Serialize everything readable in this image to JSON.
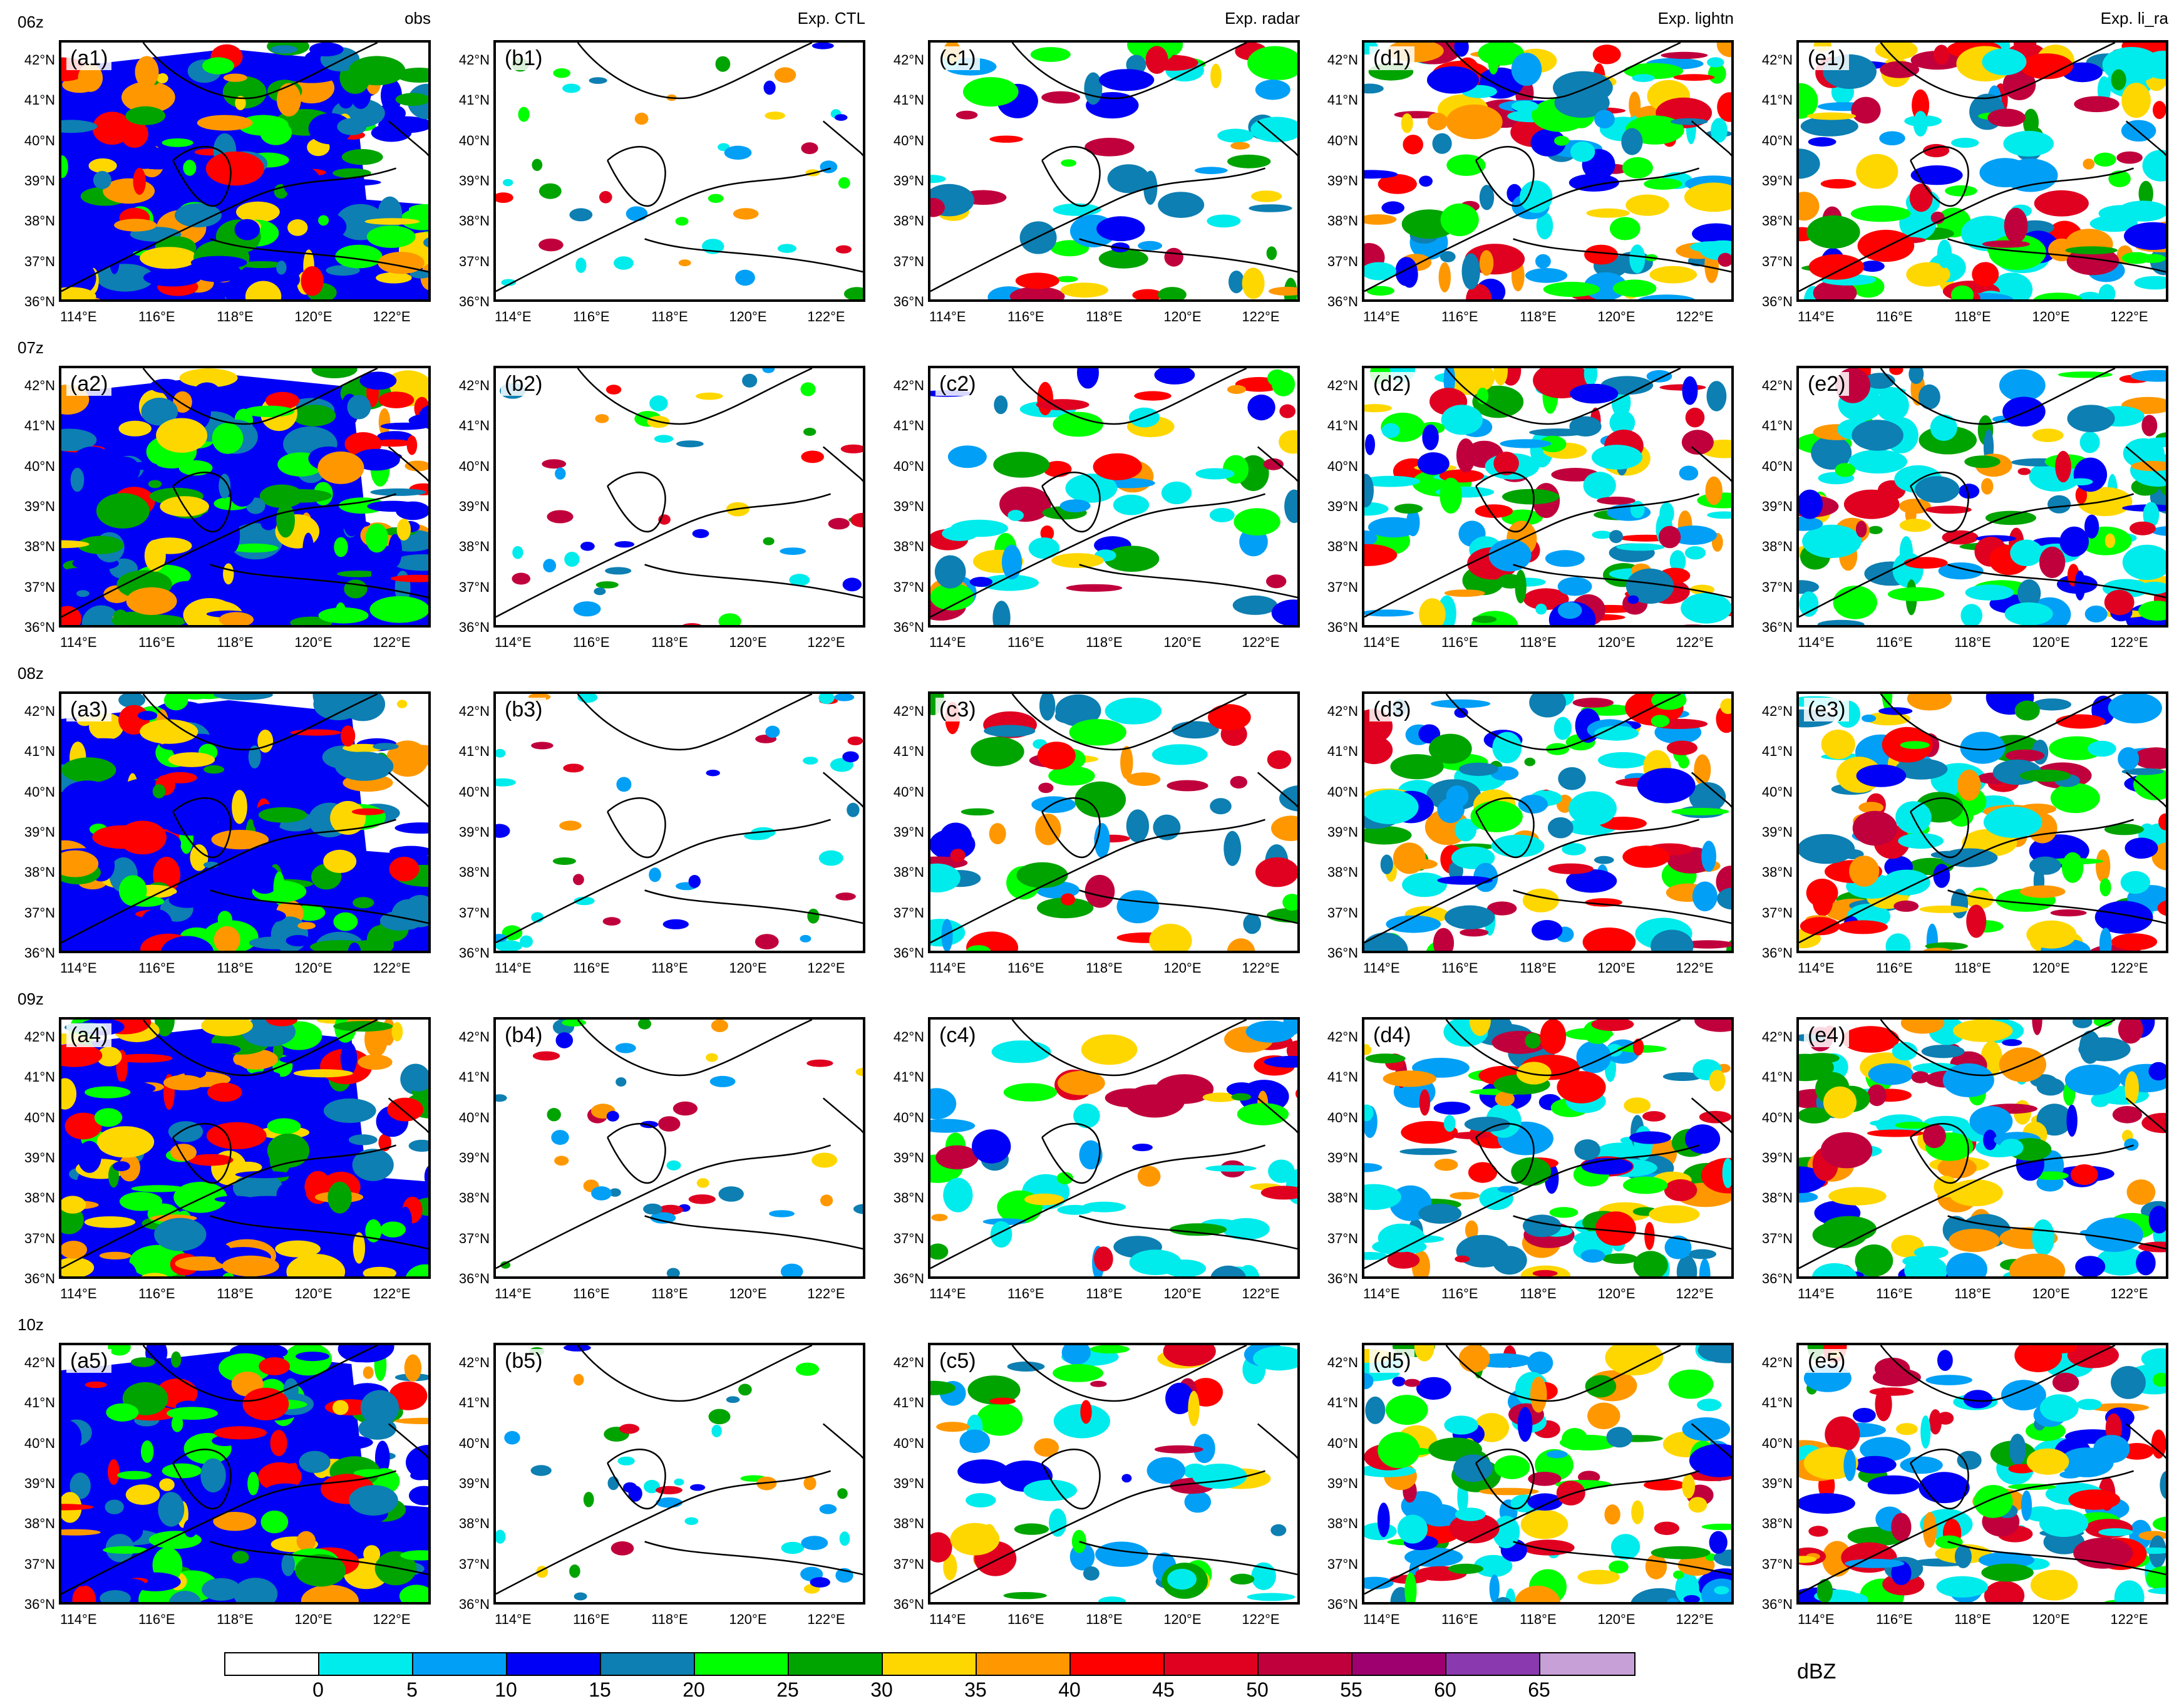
{
  "columns": [
    {
      "key": "a",
      "title": "obs"
    },
    {
      "key": "b",
      "title": "Exp. CTL"
    },
    {
      "key": "c",
      "title": "Exp. radar"
    },
    {
      "key": "d",
      "title": "Exp. lightn"
    },
    {
      "key": "e",
      "title": "Exp. li_ra"
    }
  ],
  "rows": [
    "06z",
    "07z",
    "08z",
    "09z",
    "10z"
  ],
  "panels": [
    [
      "(a1)",
      "(b1)",
      "(c1)",
      "(d1)",
      "(e1)"
    ],
    [
      "(a2)",
      "(b2)",
      "(c2)",
      "(d2)",
      "(e2)"
    ],
    [
      "(a3)",
      "(b3)",
      "(c3)",
      "(d3)",
      "(e3)"
    ],
    [
      "(a4)",
      "(b4)",
      "(c4)",
      "(d4)",
      "(e4)"
    ],
    [
      "(a5)",
      "(b5)",
      "(c5)",
      "(d5)",
      "(e5)"
    ]
  ],
  "lat_ticks": [
    "42°N",
    "41°N",
    "40°N",
    "39°N",
    "38°N",
    "37°N",
    "36°N"
  ],
  "lon_ticks": [
    "114°E",
    "116°E",
    "118°E",
    "120°E",
    "122°E"
  ],
  "map_extent": {
    "lon": [
      113.5,
      123.0
    ],
    "lat": [
      36.0,
      42.5
    ]
  },
  "colorbar": {
    "labels": [
      "0",
      "5",
      "10",
      "15",
      "20",
      "25",
      "30",
      "35",
      "40",
      "45",
      "50",
      "55",
      "60",
      "65"
    ],
    "colors": [
      "#ffffff",
      "#00ecec",
      "#01a0f6",
      "#0000f6",
      "#0d7fb2",
      "#00ff00",
      "#00a400",
      "#ffd700",
      "#ff9800",
      "#ff0000",
      "#e00020",
      "#c0003c",
      "#9e0070",
      "#8a3aae",
      "#c8a0d8"
    ],
    "units": "dBZ"
  }
}
